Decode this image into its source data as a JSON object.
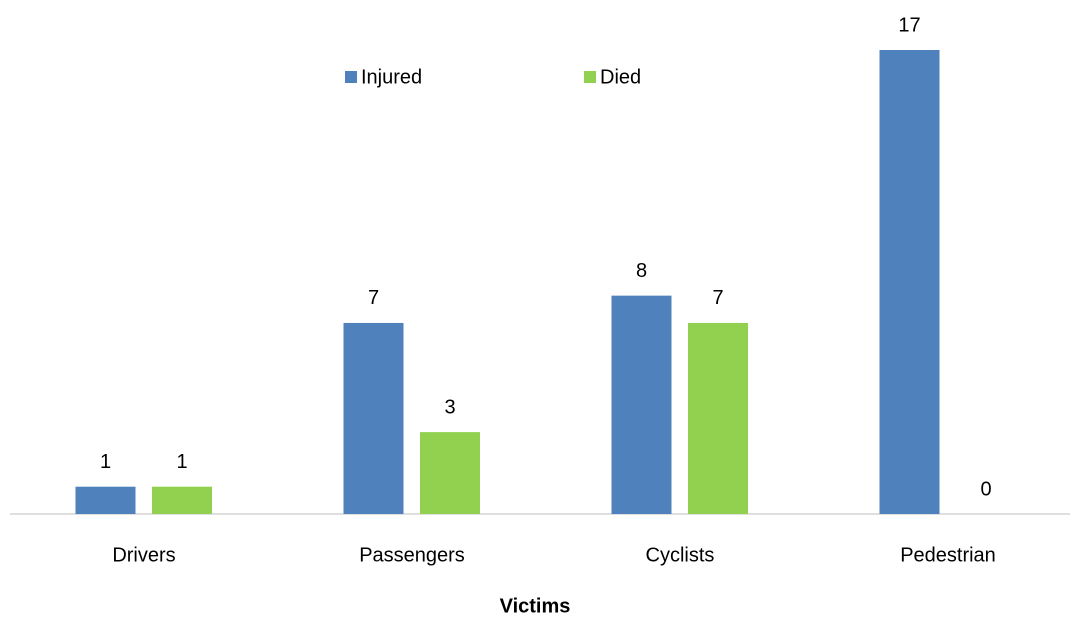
{
  "chart_data": {
    "type": "bar",
    "x_label": "Victims",
    "categories": [
      "Drivers",
      "Passengers",
      "Cyclists",
      "Pedestrian"
    ],
    "series": [
      {
        "name": "Injured",
        "color": "#4f81bd",
        "values": [
          1,
          7,
          8,
          17
        ]
      },
      {
        "name": "Died",
        "color": "#92d050",
        "values": [
          1,
          3,
          7,
          0
        ]
      }
    ],
    "legend": "top"
  }
}
